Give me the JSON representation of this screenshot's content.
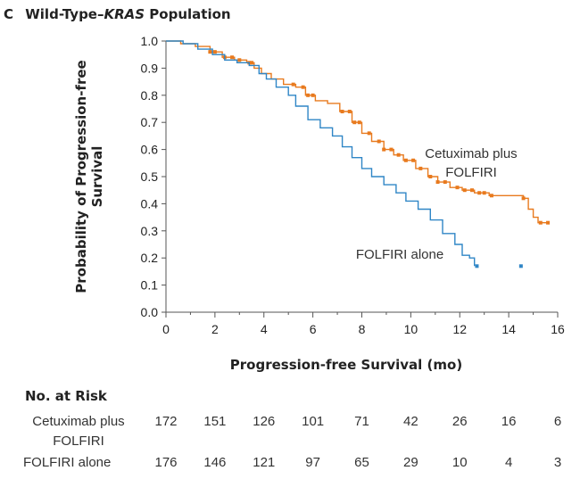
{
  "panel": {
    "letter": "C",
    "title_prefix": "Wild-Type–",
    "title_gene": "KRAS",
    "title_suffix": " Population"
  },
  "chart_data": {
    "type": "line",
    "subtype": "kaplan-meier-step",
    "xlabel": "Progression-free Survival (mo)",
    "ylabel_line1": "Probability of Progression-free",
    "ylabel_line2": "Survival",
    "xlim": [
      0,
      16
    ],
    "ylim": [
      0,
      1.0
    ],
    "x_ticks": [
      0,
      2,
      4,
      6,
      8,
      10,
      12,
      14,
      16
    ],
    "y_ticks": [
      0.0,
      0.1,
      0.2,
      0.3,
      0.4,
      0.5,
      0.6,
      0.7,
      0.8,
      0.9,
      1.0
    ],
    "y_tick_labels": [
      "0.0",
      "0.1",
      "0.2",
      "0.3",
      "0.4",
      "0.5",
      "0.6",
      "0.7",
      "0.8",
      "0.9",
      "1.0"
    ],
    "grid": false,
    "series": [
      {
        "name": "Cetuximab plus FOLFIRI",
        "color": "#e87a1e",
        "label_lines": [
          "Cetuximab plus",
          "FOLFIRI"
        ],
        "points": [
          [
            0,
            1.0
          ],
          [
            0.6,
            0.99
          ],
          [
            1.2,
            0.98
          ],
          [
            1.8,
            0.96
          ],
          [
            2.3,
            0.94
          ],
          [
            2.8,
            0.93
          ],
          [
            3.3,
            0.92
          ],
          [
            3.6,
            0.9
          ],
          [
            3.9,
            0.88
          ],
          [
            4.3,
            0.86
          ],
          [
            4.8,
            0.84
          ],
          [
            5.3,
            0.83
          ],
          [
            5.7,
            0.8
          ],
          [
            6.1,
            0.78
          ],
          [
            6.6,
            0.77
          ],
          [
            7.1,
            0.74
          ],
          [
            7.6,
            0.7
          ],
          [
            8.0,
            0.66
          ],
          [
            8.4,
            0.63
          ],
          [
            8.9,
            0.6
          ],
          [
            9.3,
            0.58
          ],
          [
            9.7,
            0.56
          ],
          [
            10.2,
            0.53
          ],
          [
            10.7,
            0.5
          ],
          [
            11.1,
            0.48
          ],
          [
            11.6,
            0.46
          ],
          [
            12.1,
            0.45
          ],
          [
            12.6,
            0.44
          ],
          [
            13.2,
            0.43
          ],
          [
            14.0,
            0.43
          ],
          [
            14.6,
            0.42
          ],
          [
            14.8,
            0.38
          ],
          [
            15.0,
            0.35
          ],
          [
            15.2,
            0.33
          ],
          [
            15.6,
            0.33
          ]
        ],
        "censor_x": [
          1.8,
          2.0,
          2.4,
          2.7,
          3.0,
          3.4,
          3.5,
          5.2,
          5.6,
          5.8,
          6.0,
          7.2,
          7.5,
          7.7,
          7.9,
          8.3,
          8.7,
          8.9,
          9.2,
          9.5,
          9.8,
          10.1,
          10.4,
          10.8,
          11.1,
          11.4,
          11.9,
          12.2,
          12.5,
          12.8,
          13.0,
          13.3,
          14.6,
          15.3,
          15.6
        ]
      },
      {
        "name": "FOLFIRI alone",
        "color": "#2f86c6",
        "label_lines": [
          "FOLFIRI alone"
        ],
        "points": [
          [
            0,
            1.0
          ],
          [
            0.7,
            0.99
          ],
          [
            1.3,
            0.97
          ],
          [
            1.9,
            0.95
          ],
          [
            2.4,
            0.93
          ],
          [
            2.9,
            0.92
          ],
          [
            3.4,
            0.91
          ],
          [
            3.8,
            0.88
          ],
          [
            4.1,
            0.86
          ],
          [
            4.5,
            0.83
          ],
          [
            5.0,
            0.8
          ],
          [
            5.3,
            0.76
          ],
          [
            5.8,
            0.71
          ],
          [
            6.3,
            0.68
          ],
          [
            6.8,
            0.65
          ],
          [
            7.2,
            0.61
          ],
          [
            7.6,
            0.57
          ],
          [
            8.0,
            0.53
          ],
          [
            8.4,
            0.5
          ],
          [
            8.9,
            0.47
          ],
          [
            9.4,
            0.44
          ],
          [
            9.8,
            0.41
          ],
          [
            10.3,
            0.38
          ],
          [
            10.8,
            0.34
          ],
          [
            11.3,
            0.29
          ],
          [
            11.8,
            0.25
          ],
          [
            12.1,
            0.21
          ],
          [
            12.4,
            0.2
          ],
          [
            12.6,
            0.17
          ]
        ],
        "censor_x": [
          12.7,
          14.5
        ]
      }
    ]
  },
  "risk_table": {
    "heading": "No. at Risk",
    "rows": [
      {
        "label_lines": [
          "Cetuximab plus",
          "FOLFIRI"
        ],
        "values": [
          "172",
          "151",
          "126",
          "101",
          "71",
          "42",
          "26",
          "16",
          "6"
        ]
      },
      {
        "label_lines": [
          "FOLFIRI alone"
        ],
        "values": [
          "176",
          "146",
          "121",
          "97",
          "65",
          "29",
          "10",
          "4",
          "3"
        ]
      }
    ]
  }
}
